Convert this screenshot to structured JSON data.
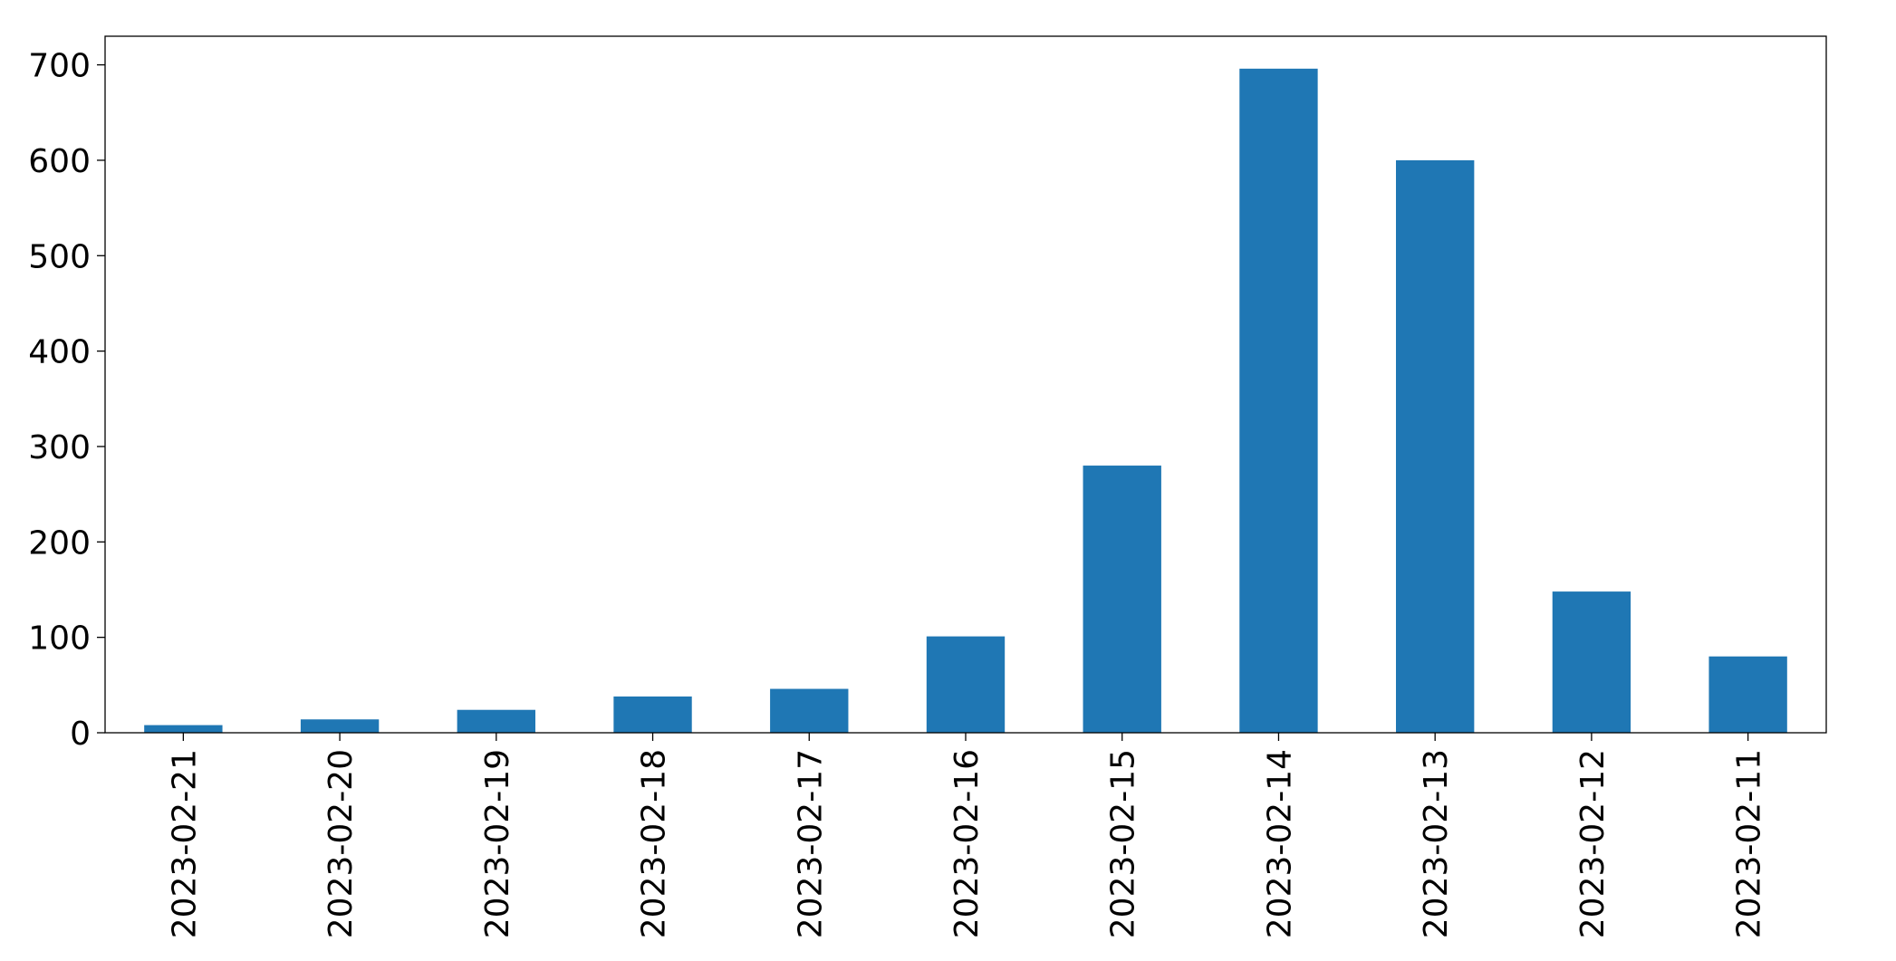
{
  "chart_data": {
    "type": "bar",
    "categories": [
      "2023-02-21",
      "2023-02-20",
      "2023-02-19",
      "2023-02-18",
      "2023-02-17",
      "2023-02-16",
      "2023-02-15",
      "2023-02-14",
      "2023-02-13",
      "2023-02-12",
      "2023-02-11"
    ],
    "values": [
      8,
      14,
      24,
      38,
      46,
      101,
      280,
      696,
      600,
      148,
      80
    ],
    "color": "#1f77b4",
    "ylim": [
      0,
      730
    ],
    "yticks": [
      0,
      100,
      200,
      300,
      400,
      500,
      600,
      700
    ],
    "grid": false
  }
}
